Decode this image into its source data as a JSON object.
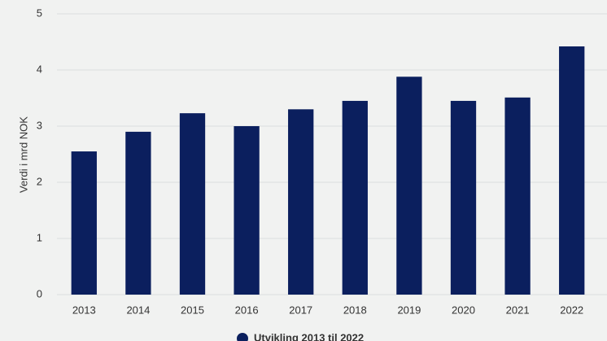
{
  "chart_data": {
    "type": "bar",
    "y_label": "Verdi i mrd NOK",
    "categories": [
      "2013",
      "2014",
      "2015",
      "2016",
      "2017",
      "2018",
      "2019",
      "2020",
      "2021",
      "2022"
    ],
    "series": [
      {
        "name": "Utvikling 2013 til 2022",
        "color": "#0b1f5e",
        "values": [
          2.55,
          2.9,
          3.23,
          3.0,
          3.3,
          3.45,
          3.88,
          3.45,
          3.51,
          4.42
        ]
      }
    ],
    "ylim": [
      0,
      5
    ],
    "yticks": [
      0,
      1,
      2,
      3,
      4,
      5
    ],
    "grid": true
  }
}
